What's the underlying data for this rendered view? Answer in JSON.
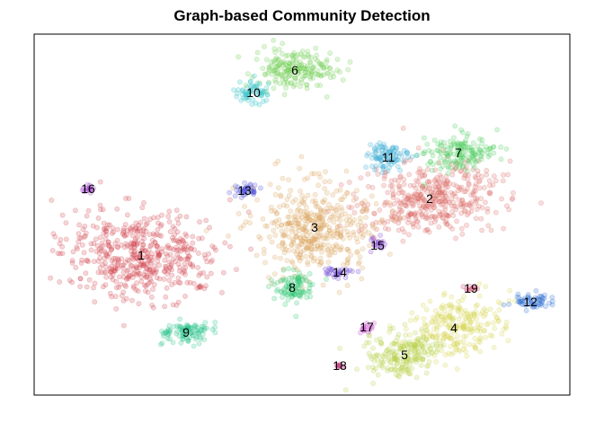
{
  "chart_data": {
    "type": "scatter",
    "title": "Graph-based Community Detection",
    "xlabel": "",
    "ylabel": "",
    "grid": false,
    "axes_visible": false,
    "legend": "none",
    "clusters": [
      {
        "label": "1",
        "color": "#d0454f",
        "x": 157,
        "y": 284,
        "rx": 88,
        "ry": 48,
        "n": 520,
        "rot": 0
      },
      {
        "label": "2",
        "color": "#da6a63",
        "x": 478,
        "y": 221,
        "rx": 78,
        "ry": 40,
        "n": 430,
        "rot": -5
      },
      {
        "label": "3",
        "color": "#d9a25b",
        "x": 350,
        "y": 253,
        "rx": 64,
        "ry": 50,
        "n": 430,
        "rot": 0
      },
      {
        "label": "4",
        "color": "#d7d450",
        "x": 505,
        "y": 365,
        "rx": 52,
        "ry": 34,
        "n": 250,
        "rot": -20
      },
      {
        "label": "5",
        "color": "#b4d24a",
        "x": 450,
        "y": 395,
        "rx": 42,
        "ry": 26,
        "n": 200,
        "rot": -10
      },
      {
        "label": "6",
        "color": "#6ecf4f",
        "x": 328,
        "y": 78,
        "rx": 45,
        "ry": 22,
        "n": 200,
        "rot": 0
      },
      {
        "label": "7",
        "color": "#4fce5e",
        "x": 510,
        "y": 170,
        "rx": 38,
        "ry": 20,
        "n": 160,
        "rot": 0
      },
      {
        "label": "8",
        "color": "#2fc770",
        "x": 325,
        "y": 320,
        "rx": 23,
        "ry": 18,
        "n": 100,
        "rot": 0
      },
      {
        "label": "9",
        "color": "#27c28a",
        "x": 207,
        "y": 370,
        "rx": 27,
        "ry": 13,
        "n": 100,
        "rot": 0
      },
      {
        "label": "10",
        "color": "#2bc1c2",
        "x": 282,
        "y": 103,
        "rx": 20,
        "ry": 12,
        "n": 60,
        "rot": 0
      },
      {
        "label": "11",
        "color": "#31a8d0",
        "x": 432,
        "y": 175,
        "rx": 25,
        "ry": 16,
        "n": 90,
        "rot": 0
      },
      {
        "label": "12",
        "color": "#2f6fd3",
        "x": 590,
        "y": 336,
        "rx": 20,
        "ry": 8,
        "n": 60,
        "rot": 0
      },
      {
        "label": "13",
        "color": "#4c4fd4",
        "x": 272,
        "y": 212,
        "rx": 14,
        "ry": 9,
        "n": 40,
        "rot": 0
      },
      {
        "label": "14",
        "color": "#6a42d3",
        "x": 378,
        "y": 303,
        "rx": 17,
        "ry": 7,
        "n": 30,
        "rot": 0
      },
      {
        "label": "15",
        "color": "#7f3dcf",
        "x": 420,
        "y": 273,
        "rx": 10,
        "ry": 7,
        "n": 20,
        "rot": 0
      },
      {
        "label": "16",
        "color": "#9e3acb",
        "x": 98,
        "y": 210,
        "rx": 7,
        "ry": 5,
        "n": 16,
        "rot": 0
      },
      {
        "label": "17",
        "color": "#c23fc8",
        "x": 408,
        "y": 364,
        "rx": 7,
        "ry": 6,
        "n": 16,
        "rot": 0
      },
      {
        "label": "18",
        "color": "#c5307f",
        "x": 378,
        "y": 407,
        "rx": 6,
        "ry": 3,
        "n": 10,
        "rot": 0
      },
      {
        "label": "19",
        "color": "#cf3460",
        "x": 524,
        "y": 321,
        "rx": 6,
        "ry": 4,
        "n": 10,
        "rot": 0
      }
    ],
    "xlim": [
      38,
      634
    ],
    "ylim": [
      440,
      38
    ]
  },
  "colors": {
    "frame": "#000000",
    "background": "#ffffff"
  }
}
